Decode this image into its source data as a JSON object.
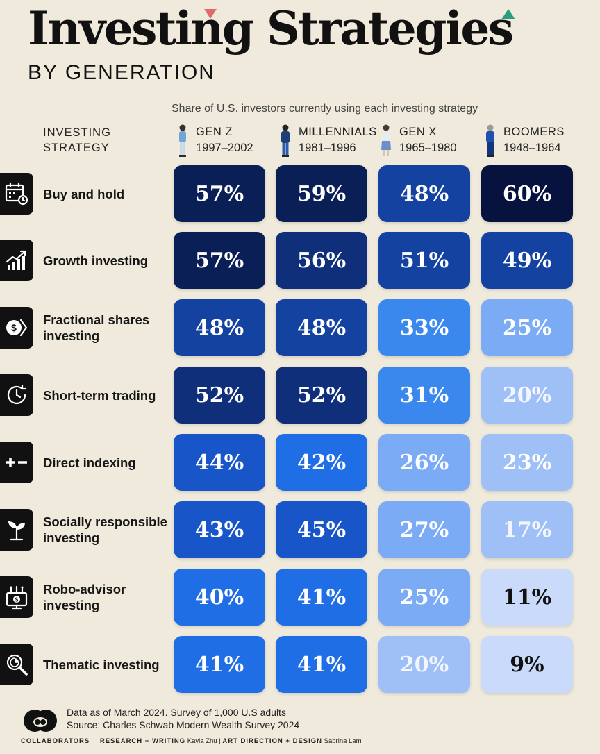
{
  "header": {
    "title": "Investing Strategies",
    "subtitle": "BY GENERATION",
    "caption": "Share of U.S. investors currently using each investing strategy",
    "strategy_label_line1": "INVESTING",
    "strategy_label_line2": "STRATEGY"
  },
  "colors": {
    "background": "#efeadb",
    "scale": [
      "#c9dafb",
      "#9fc0f7",
      "#7aabf4",
      "#3a87ee",
      "#1f6ee6",
      "#1755c8",
      "#1442a0",
      "#0f2f7a",
      "#0a1f56",
      "#07123f"
    ]
  },
  "chart_data": {
    "type": "table",
    "title": "Investing Strategies by Generation",
    "columns": [
      {
        "name": "GEN Z",
        "years": "1997–2002",
        "icon": "gen-z-figure-icon"
      },
      {
        "name": "MILLENNIALS",
        "years": "1981–1996",
        "icon": "millennial-figure-icon"
      },
      {
        "name": "GEN X",
        "years": "1965–1980",
        "icon": "gen-x-figure-icon"
      },
      {
        "name": "BOOMERS",
        "years": "1948–1964",
        "icon": "boomer-figure-icon"
      }
    ],
    "rows": [
      {
        "label": "Buy and hold",
        "icon": "calendar-clock-icon",
        "values": [
          57,
          59,
          48,
          60
        ],
        "display": [
          "57%",
          "59%",
          "48%",
          "60%"
        ]
      },
      {
        "label": "Growth investing",
        "icon": "growth-chart-icon",
        "values": [
          57,
          56,
          51,
          49
        ],
        "display": [
          "57%",
          "56%",
          "51%",
          "49%"
        ]
      },
      {
        "label": "Fractional shares investing",
        "icon": "fractional-coin-icon",
        "values": [
          48,
          48,
          33,
          25
        ],
        "display": [
          "48%",
          "48%",
          "33%",
          "25%"
        ]
      },
      {
        "label": "Short-term trading",
        "icon": "clock-arrow-icon",
        "values": [
          52,
          52,
          31,
          20
        ],
        "display": [
          "52%",
          "52%",
          "31%",
          "20%"
        ]
      },
      {
        "label": "Direct indexing",
        "icon": "plus-minus-icon",
        "values": [
          44,
          42,
          26,
          23
        ],
        "display": [
          "44%",
          "42%",
          "26%",
          "23%"
        ]
      },
      {
        "label": "Socially responsible investing",
        "icon": "sprout-icon",
        "values": [
          43,
          45,
          27,
          17
        ],
        "display": [
          "43%",
          "45%",
          "27%",
          "17%"
        ]
      },
      {
        "label": "Robo-advisor investing",
        "icon": "robo-monitor-icon",
        "values": [
          40,
          41,
          25,
          11
        ],
        "display": [
          "40%",
          "41%",
          "25%",
          "11%"
        ]
      },
      {
        "label": "Thematic investing",
        "icon": "magnifier-pie-icon",
        "values": [
          41,
          41,
          20,
          9
        ],
        "display": [
          "41%",
          "41%",
          "20%",
          "9%"
        ]
      }
    ]
  },
  "footer": {
    "note": "Data as of March 2024. Survey of 1,000 U.S adults",
    "source": "Source: Charles Schwab Modern Wealth Survey 2024",
    "brand": "COLLABORATORS",
    "research_label": "RESEARCH + WRITING",
    "research_name": "Kayla Zhu",
    "design_label": "ART DIRECTION + DESIGN",
    "design_name": "Sabrina Lam",
    "logo_icon": "collaborators-logo-icon"
  }
}
